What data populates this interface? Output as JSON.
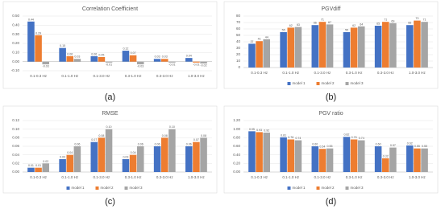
{
  "chart_data": [
    {
      "type": "bar",
      "title": "Correlation Coefficient",
      "caption": "(a)",
      "legend": false,
      "grid": true,
      "categories": [
        "0.1-0.3 Hz",
        "0.1-1.0 Hz",
        "0.1-3.0 Hz",
        "0.3-1.0 Hz",
        "0.3-3.0 Hz",
        "1.0-3.0 Hz"
      ],
      "ylim": [
        -0.1,
        0.5
      ],
      "yticks": [
        {
          "value": -0.1,
          "label": "-0.10"
        },
        {
          "value": 0,
          "label": "0.00"
        },
        {
          "value": 0.1,
          "label": "0.10"
        },
        {
          "value": 0.2,
          "label": "0.20"
        },
        {
          "value": 0.3,
          "label": "0.30"
        },
        {
          "value": 0.4,
          "label": "0.40"
        },
        {
          "value": 0.5,
          "label": "0.50"
        }
      ],
      "series": [
        {
          "color": "#4472c4",
          "values": [
            0.44,
            0.15,
            0.06,
            0.12,
            0.03,
            0.04
          ]
        },
        {
          "color": "#ed7d31",
          "values": [
            0.29,
            0.06,
            0.05,
            0.07,
            0.03,
            -0.01
          ]
        },
        {
          "color": "#a5a5a5",
          "values": [
            -0.03,
            0.03,
            -0.01,
            -0.03,
            -0.01,
            -0.02
          ]
        }
      ]
    },
    {
      "type": "bar",
      "title": "PGVdiff",
      "caption": "(b)",
      "legend": true,
      "grid": true,
      "categories": [
        "0.1-0.3 Hz",
        "0.1-1.0 Hz",
        "0.1-3.0 Hz",
        "0.3-1.0 Hz",
        "0.3-3.0 Hz",
        "1.0-3.0 Hz"
      ],
      "ylim": [
        0,
        80
      ],
      "yticks": [
        0,
        10,
        20,
        30,
        40,
        50,
        60,
        70,
        80
      ],
      "series": [
        {
          "name": "model 1",
          "color": "#4472c4",
          "values": [
            37,
            55,
            66,
            55,
            65,
            66
          ]
        },
        {
          "name": "model 2",
          "color": "#ed7d31",
          "values": [
            41,
            62,
            71,
            62,
            71,
            73
          ]
        },
        {
          "name": "model 3",
          "color": "#a5a5a5",
          "values": [
            44,
            63,
            67,
            64,
            69,
            71
          ]
        }
      ]
    },
    {
      "type": "bar",
      "title": "RMSE",
      "caption": "(c)",
      "legend": true,
      "grid": true,
      "categories": [
        "0.1-0.3 Hz",
        "0.1-1.0 Hz",
        "0.1-3.0 Hz",
        "0.3-1.0 Hz",
        "0.3-3.0 Hz",
        "1.0-3.0 Hz"
      ],
      "ylim": [
        0,
        0.12
      ],
      "yticks": [
        {
          "value": 0,
          "label": "0.00"
        },
        {
          "value": 0.02,
          "label": "0.02"
        },
        {
          "value": 0.04,
          "label": "0.04"
        },
        {
          "value": 0.06,
          "label": "0.06"
        },
        {
          "value": 0.08,
          "label": "0.08"
        },
        {
          "value": 0.1,
          "label": "0.10"
        },
        {
          "value": 0.12,
          "label": "0.12"
        }
      ],
      "series": [
        {
          "name": "model 1",
          "color": "#4472c4",
          "values": [
            0.01,
            0.03,
            0.07,
            0.03,
            0.06,
            0.06
          ]
        },
        {
          "name": "model 2",
          "color": "#ed7d31",
          "values": [
            0.01,
            0.04,
            0.08,
            0.04,
            0.08,
            0.07
          ]
        },
        {
          "name": "model 3",
          "color": "#a5a5a5",
          "values": [
            0.02,
            0.06,
            0.1,
            0.06,
            0.1,
            0.08
          ],
          "value_labels": [
            "0.02",
            "0.06",
            "0.10",
            "0.06",
            "0.10",
            "0.08"
          ]
        }
      ]
    },
    {
      "type": "bar",
      "title": "PGV ratio",
      "caption": "(d)",
      "legend": true,
      "grid": true,
      "categories": [
        "0.1-0.3 Hz",
        "0.1-1.0 Hz",
        "0.1-3.0 Hz",
        "0.3-1.0 Hz",
        "0.3-3.0 Hz",
        "1.0-3.0 Hz"
      ],
      "ylim": [
        0,
        1.2
      ],
      "yticks": [
        {
          "value": 0,
          "label": "0.00"
        },
        {
          "value": 0.2,
          "label": "0.20"
        },
        {
          "value": 0.4,
          "label": "0.40"
        },
        {
          "value": 0.6,
          "label": "0.60"
        },
        {
          "value": 0.8,
          "label": "0.80"
        },
        {
          "value": 1,
          "label": "1.00"
        },
        {
          "value": 1.2,
          "label": "1.20"
        }
      ],
      "series": [
        {
          "name": "model 1",
          "color": "#4472c4",
          "values": [
            0.95,
            0.81,
            0.6,
            0.82,
            0.6,
            0.62
          ],
          "value_labels": [
            "0.95",
            "0.81",
            "0.60",
            "0.82",
            "0.60",
            "0.62"
          ]
        },
        {
          "name": "model 2",
          "color": "#ed7d31",
          "values": [
            0.93,
            0.76,
            0.54,
            0.76,
            0.32,
            0.55
          ]
        },
        {
          "name": "model 3",
          "color": "#a5a5a5",
          "values": [
            0.92,
            0.74,
            0.55,
            0.74,
            0.57,
            0.55
          ]
        }
      ]
    }
  ]
}
